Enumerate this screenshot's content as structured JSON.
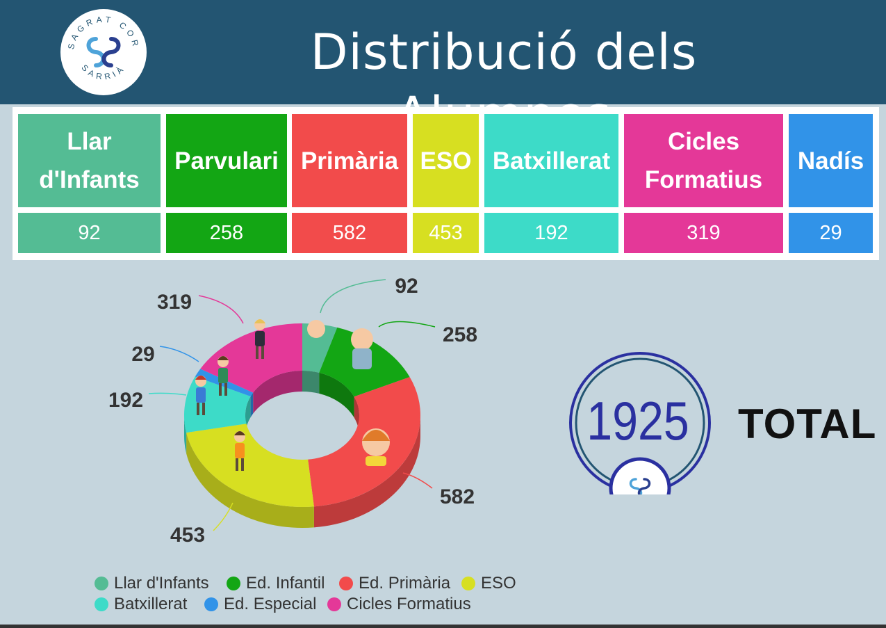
{
  "header": {
    "title": "Distribució dels Alumnes",
    "logo_text_top": "SAGRAT COR",
    "logo_text_bottom": "SARRIÀ"
  },
  "table": {
    "columns": [
      {
        "label": "Llar d'Infants",
        "value": "92",
        "color": "#54bc94"
      },
      {
        "label": "Parvulari",
        "value": "258",
        "color": "#13a614"
      },
      {
        "label": "Primària",
        "value": "582",
        "color": "#f24b4b"
      },
      {
        "label": "ESO",
        "value": "453",
        "color": "#d7df21"
      },
      {
        "label": "Batxillerat",
        "value": "192",
        "color": "#3ddbc8"
      },
      {
        "label": "Cicles Formatius",
        "value": "319",
        "color": "#e43898"
      },
      {
        "label": "Nadís",
        "value": "29",
        "color": "#3193e8"
      }
    ]
  },
  "chart_data": {
    "type": "pie",
    "style": "3d-donut",
    "categories": [
      "Llar d'Infants",
      "Ed. Infantil",
      "Ed. Primària",
      "ESO",
      "Batxillerat",
      "Ed. Especial",
      "Cicles Formatius"
    ],
    "values": [
      92,
      258,
      582,
      453,
      192,
      29,
      319
    ],
    "colors": [
      "#54bc94",
      "#13a614",
      "#f24b4b",
      "#d7df21",
      "#3ddbc8",
      "#3193e8",
      "#e43898"
    ],
    "legend_position": "bottom"
  },
  "total": {
    "value": "1925",
    "label": "TOTAL"
  },
  "legend": [
    {
      "label": "Llar d'Infants",
      "color": "#54bc94"
    },
    {
      "label": "Ed. Infantil",
      "color": "#13a614"
    },
    {
      "label": "Ed. Primària",
      "color": "#f24b4b"
    },
    {
      "label": "ESO",
      "color": "#d7df21"
    },
    {
      "label": "Batxillerat",
      "color": "#3ddbc8"
    },
    {
      "label": "Ed. Especial",
      "color": "#3193e8"
    },
    {
      "label": "Cicles Formatius",
      "color": "#e43898"
    }
  ]
}
